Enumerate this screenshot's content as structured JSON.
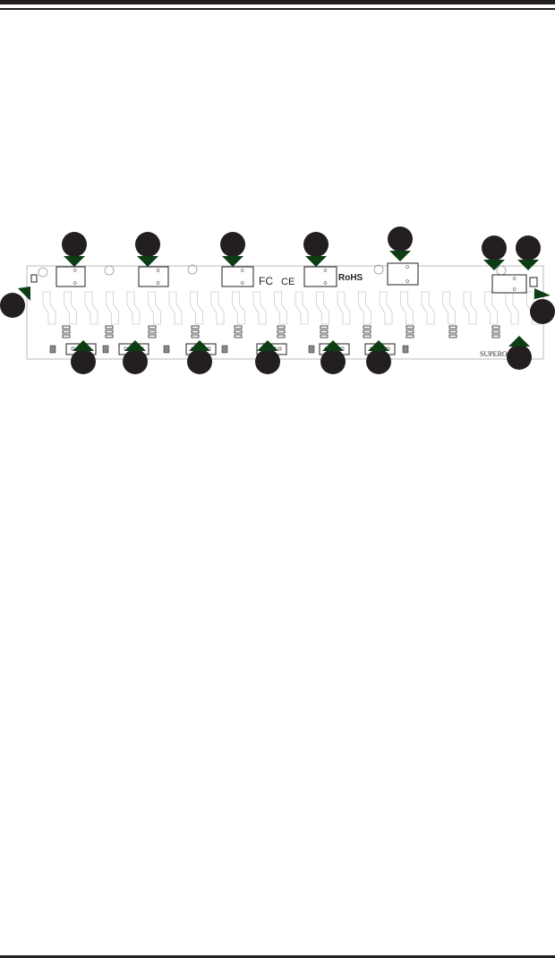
{
  "diagram": {
    "board_markings": {
      "fcc": "FC",
      "ce": "CE",
      "rohs": "RoHS",
      "brand": "SUPERO"
    },
    "callout_count": 16,
    "colors": {
      "callout": "#231f20",
      "arrow": "#0d3d14",
      "board_outline": "#bbbbbb",
      "ink": "#231f20"
    }
  }
}
